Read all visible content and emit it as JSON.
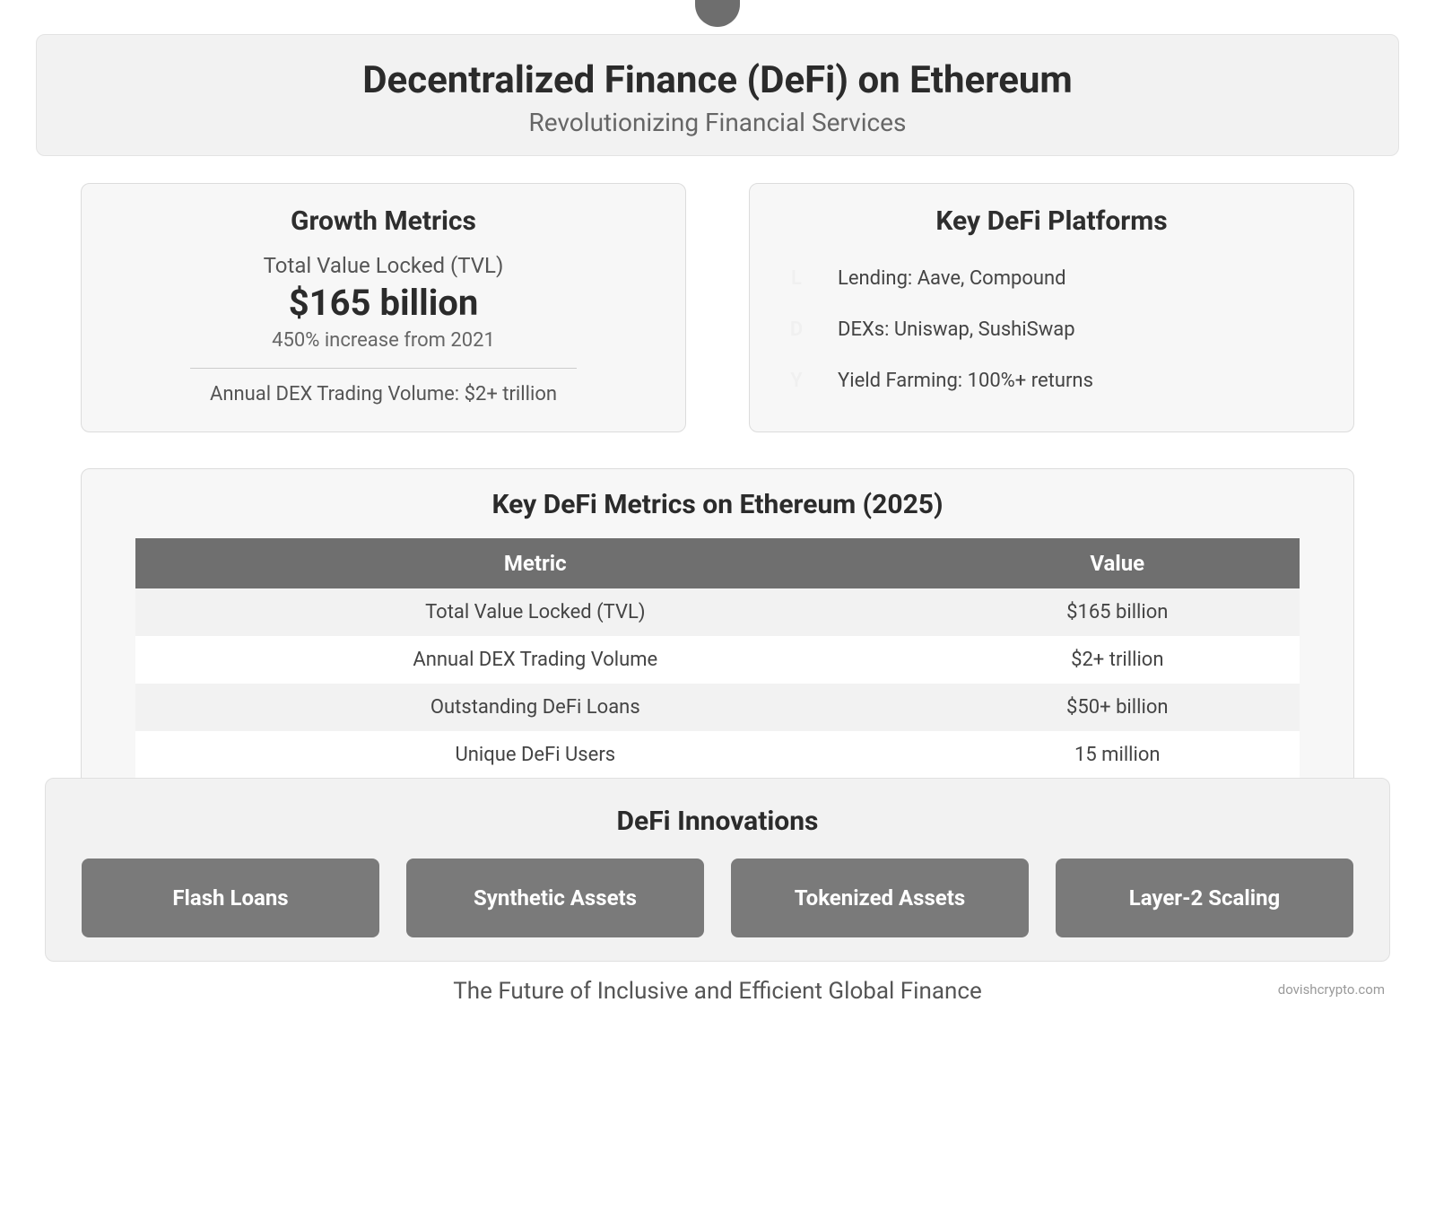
{
  "header": {
    "title": "Decentralized Finance (DeFi) on Ethereum",
    "subtitle": "Revolutionizing Financial Services"
  },
  "growth": {
    "heading": "Growth Metrics",
    "tvl_label": "Total Value Locked (TVL)",
    "tvl_value": "$165 billion",
    "tvl_change": "450% increase from 2021",
    "dex_volume": "Annual DEX Trading Volume: $2+ trillion"
  },
  "platforms": {
    "heading": "Key DeFi Platforms",
    "rows": [
      {
        "letter": "L",
        "text": "Lending: Aave, Compound"
      },
      {
        "letter": "D",
        "text": "DEXs: Uniswap, SushiSwap"
      },
      {
        "letter": "Y",
        "text": "Yield Farming: 100%+ returns"
      }
    ]
  },
  "metrics_table": {
    "heading": "Key DeFi Metrics on Ethereum (2025)",
    "col1": "Metric",
    "col2": "Value",
    "rows": [
      {
        "metric": "Total Value Locked (TVL)",
        "value": "$165 billion"
      },
      {
        "metric": "Annual DEX Trading Volume",
        "value": "$2+ trillion"
      },
      {
        "metric": "Outstanding DeFi Loans",
        "value": "$50+ billion"
      },
      {
        "metric": "Unique DeFi Users",
        "value": "15 million"
      }
    ]
  },
  "innovations": {
    "heading": "DeFi Innovations",
    "items": [
      "Flash Loans",
      "Synthetic Assets",
      "Tokenized Assets",
      "Layer-2 Scaling"
    ]
  },
  "footer": "The Future of Inclusive and Efficient Global Finance",
  "watermark": "dovishcrypto.com",
  "style": {
    "page_bg": "#ffffff",
    "card_bg_light": "#f2f2f2",
    "card_bg_panel": "#f7f7f7",
    "border_color": "#dcdcdc",
    "heading_color": "#2b2b2b",
    "body_text": "#555555",
    "table_header_bg": "#6f6f6f",
    "pill_bg": "#7a7a7a",
    "dot_bg": "#6e6e6e"
  }
}
